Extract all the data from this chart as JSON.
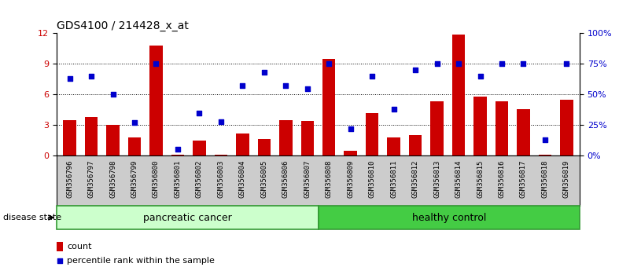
{
  "title": "GDS4100 / 214428_x_at",
  "samples": [
    "GSM356796",
    "GSM356797",
    "GSM356798",
    "GSM356799",
    "GSM356800",
    "GSM356801",
    "GSM356802",
    "GSM356803",
    "GSM356804",
    "GSM356805",
    "GSM356806",
    "GSM356807",
    "GSM356808",
    "GSM356809",
    "GSM356810",
    "GSM356811",
    "GSM356812",
    "GSM356813",
    "GSM356814",
    "GSM356815",
    "GSM356816",
    "GSM356817",
    "GSM356818",
    "GSM356819"
  ],
  "counts": [
    3.5,
    3.8,
    3.0,
    1.8,
    10.8,
    0.1,
    1.5,
    0.1,
    2.2,
    1.6,
    3.5,
    3.4,
    9.5,
    0.5,
    4.2,
    1.8,
    2.0,
    5.3,
    11.9,
    5.8,
    5.3,
    4.6,
    0.1,
    5.5
  ],
  "percentiles": [
    63,
    65,
    50,
    27,
    75,
    5,
    35,
    28,
    57,
    68,
    57,
    55,
    75,
    22,
    65,
    38,
    70,
    75,
    75,
    65,
    75,
    75,
    13,
    75
  ],
  "bar_color": "#cc0000",
  "dot_color": "#0000cc",
  "ylim_left": [
    0,
    12
  ],
  "ylim_right": [
    0,
    100
  ],
  "yticks_left": [
    0,
    3,
    6,
    9,
    12
  ],
  "yticks_right": [
    0,
    25,
    50,
    75,
    100
  ],
  "ytick_labels_right": [
    "0%",
    "25%",
    "50%",
    "75%",
    "100%"
  ],
  "pc_n": 12,
  "hc_n": 12,
  "group_light": "#ccffcc",
  "group_green": "#44cc44"
}
